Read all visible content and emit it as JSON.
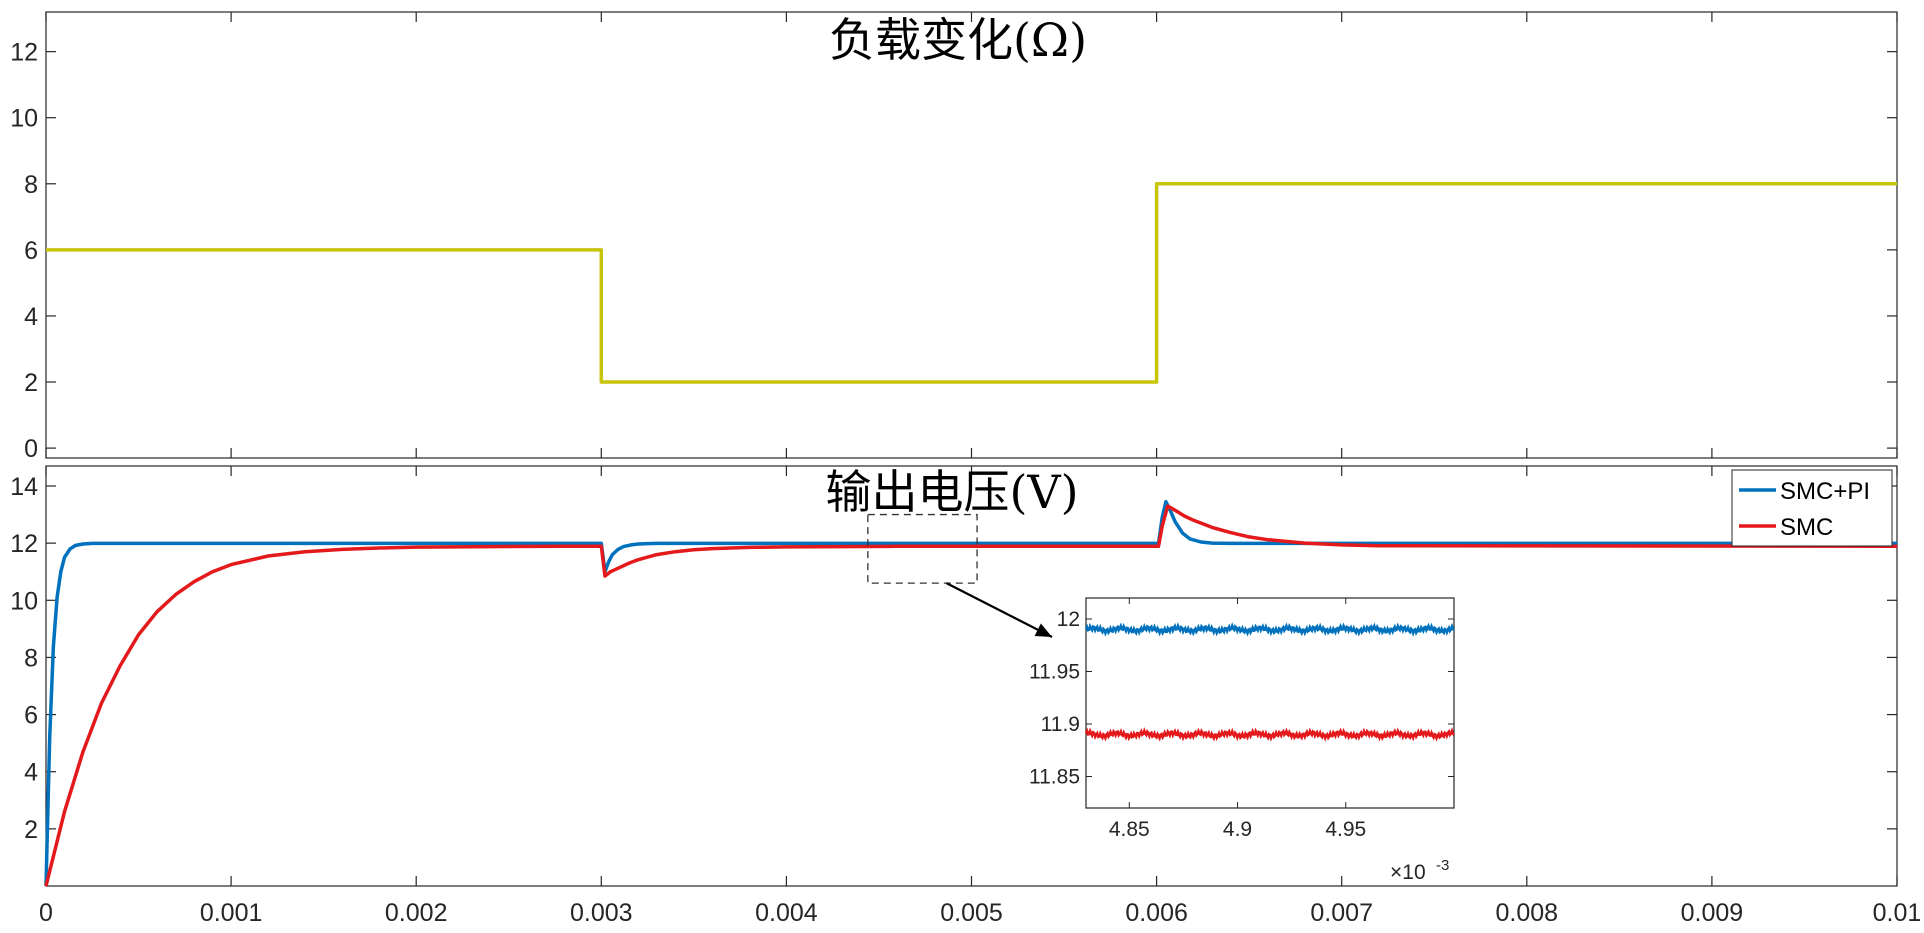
{
  "chart_data": [
    {
      "type": "line",
      "title": "负载变化(Ω)",
      "xlim": [
        0,
        0.01
      ],
      "ylim": [
        -0.3,
        13.2
      ],
      "yticks": [
        0,
        2,
        4,
        6,
        8,
        10,
        12
      ],
      "xticks": [
        0,
        0.001,
        0.002,
        0.003,
        0.004,
        0.005,
        0.006,
        0.007,
        0.008,
        0.009,
        0.01
      ],
      "grid": false,
      "series": [
        {
          "color": "#c8c40a",
          "x": [
            0,
            0.003,
            0.003,
            0.006,
            0.006,
            0.01
          ],
          "y": [
            6,
            6,
            2,
            2,
            8,
            8
          ]
        }
      ]
    },
    {
      "type": "line",
      "title": "输出电压(V)",
      "xlim": [
        0,
        0.01
      ],
      "ylim": [
        0,
        14.7
      ],
      "yticks": [
        2,
        4,
        6,
        8,
        10,
        12,
        14
      ],
      "xticks": [
        0,
        0.001,
        0.002,
        0.003,
        0.004,
        0.005,
        0.006,
        0.007,
        0.008,
        0.009,
        0.01
      ],
      "xticklabels": [
        "0",
        "0.001",
        "0.002",
        "0.003",
        "0.004",
        "0.005",
        "0.006",
        "0.007",
        "0.008",
        "0.009",
        "0.01"
      ],
      "grid": false,
      "legend": "top-right",
      "series": [
        {
          "name": "SMC+PI",
          "color": "#0072bd",
          "x": [
            0,
            2e-05,
            4e-05,
            6e-05,
            8e-05,
            0.0001,
            0.00013,
            0.00016,
            0.0002,
            0.00025,
            0.0003,
            0.0004,
            0.002999,
            0.003,
            0.00302,
            0.00304,
            0.00306,
            0.00309,
            0.00312,
            0.00316,
            0.0032,
            0.00325,
            0.0033,
            0.0034,
            0.006,
            0.00601,
            0.00603,
            0.00605,
            0.00607,
            0.0061,
            0.00614,
            0.00618,
            0.00624,
            0.0063,
            0.0064,
            0.0065,
            0.01
          ],
          "y": [
            0,
            5.2,
            8.4,
            10.1,
            11.0,
            11.5,
            11.8,
            11.92,
            11.97,
            11.99,
            11.99,
            11.99,
            11.99,
            11.99,
            11.0,
            11.35,
            11.6,
            11.78,
            11.88,
            11.94,
            11.97,
            11.985,
            11.99,
            11.99,
            11.99,
            11.99,
            12.9,
            13.45,
            13.2,
            12.75,
            12.35,
            12.15,
            12.04,
            12.0,
            11.99,
            11.99,
            11.99
          ]
        },
        {
          "name": "SMC",
          "color": "#e3191c",
          "x": [
            0,
            0.0001,
            0.0002,
            0.0003,
            0.0004,
            0.0005,
            0.0006,
            0.0007,
            0.0008,
            0.0009,
            0.001,
            0.0012,
            0.0014,
            0.0016,
            0.0018,
            0.002,
            0.0024,
            0.0028,
            0.002999,
            0.003,
            0.00302,
            0.00305,
            0.0031,
            0.00315,
            0.0032,
            0.0033,
            0.0034,
            0.0035,
            0.0036,
            0.0038,
            0.004,
            0.0043,
            0.0046,
            0.006,
            0.00601,
            0.00603,
            0.00606,
            0.0061,
            0.00615,
            0.0062,
            0.0063,
            0.0064,
            0.0065,
            0.0066,
            0.0068,
            0.007,
            0.0072,
            0.01
          ],
          "y": [
            0,
            2.6,
            4.7,
            6.4,
            7.7,
            8.8,
            9.6,
            10.2,
            10.65,
            11.0,
            11.25,
            11.55,
            11.7,
            11.78,
            11.83,
            11.86,
            11.88,
            11.89,
            11.89,
            11.89,
            10.85,
            11.0,
            11.15,
            11.3,
            11.42,
            11.6,
            11.7,
            11.77,
            11.81,
            11.85,
            11.87,
            11.88,
            11.89,
            11.89,
            11.89,
            12.6,
            13.3,
            13.15,
            12.95,
            12.8,
            12.55,
            12.37,
            12.22,
            12.12,
            12.0,
            11.94,
            11.91,
            11.89
          ]
        }
      ],
      "zoom_box": {
        "xlim": [
          0.00444,
          0.00503
        ],
        "ylim": [
          10.6,
          13.0
        ]
      },
      "inset": {
        "xlim": [
          4.83,
          5.0
        ],
        "ylim": [
          11.82,
          12.02
        ],
        "xticks": [
          4.85,
          4.9,
          4.95
        ],
        "xticklabels": [
          "4.85",
          "4.9",
          "4.95"
        ],
        "yticks": [
          11.85,
          11.9,
          11.95,
          12
        ],
        "yticklabels": [
          "11.85",
          "11.9",
          "11.95",
          "12"
        ],
        "x_multiplier": "×10",
        "x_multiplier_exponent": "-3",
        "series": [
          {
            "name": "SMC+PI",
            "color": "#0072bd",
            "mean": 11.99,
            "ripple": 0.002
          },
          {
            "name": "SMC",
            "color": "#e3191c",
            "mean": 11.89,
            "ripple": 0.002
          }
        ]
      }
    }
  ]
}
